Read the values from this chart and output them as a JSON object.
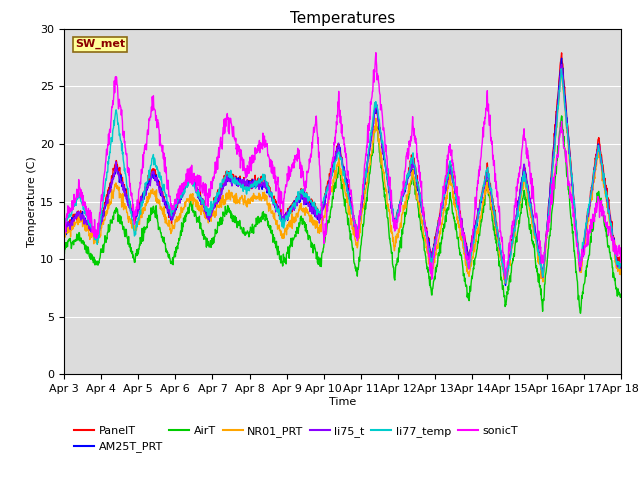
{
  "title": "Temperatures",
  "xlabel": "Time",
  "ylabel": "Temperature (C)",
  "ylim": [
    0,
    30
  ],
  "yticks": [
    0,
    5,
    10,
    15,
    20,
    25,
    30
  ],
  "x_labels": [
    "Apr 3",
    "Apr 4",
    "Apr 5",
    "Apr 6",
    "Apr 7",
    "Apr 8",
    "Apr 9",
    "Apr 10",
    "Apr 11",
    "Apr 12",
    "Apr 13",
    "Apr 14",
    "Apr 15",
    "Apr 16",
    "Apr 17",
    "Apr 18"
  ],
  "annotation_text": "SW_met",
  "annotation_color": "#8B0000",
  "annotation_bg": "#FFFF99",
  "annotation_border": "#8B6914",
  "bg_color": "#DCDCDC",
  "series": {
    "PanelT": {
      "color": "#FF0000",
      "lw": 1.0
    },
    "AM25T_PRT": {
      "color": "#0000FF",
      "lw": 1.0
    },
    "AirT": {
      "color": "#00CC00",
      "lw": 1.0
    },
    "NR01_PRT": {
      "color": "#FFA500",
      "lw": 1.0
    },
    "li75_t": {
      "color": "#8B00FF",
      "lw": 1.0
    },
    "li77_temp": {
      "color": "#00CCCC",
      "lw": 1.0
    },
    "sonicT": {
      "color": "#FF00FF",
      "lw": 1.0
    }
  },
  "title_fontsize": 11,
  "label_fontsize": 8,
  "tick_fontsize": 8,
  "figsize": [
    6.4,
    4.8
  ],
  "dpi": 100
}
